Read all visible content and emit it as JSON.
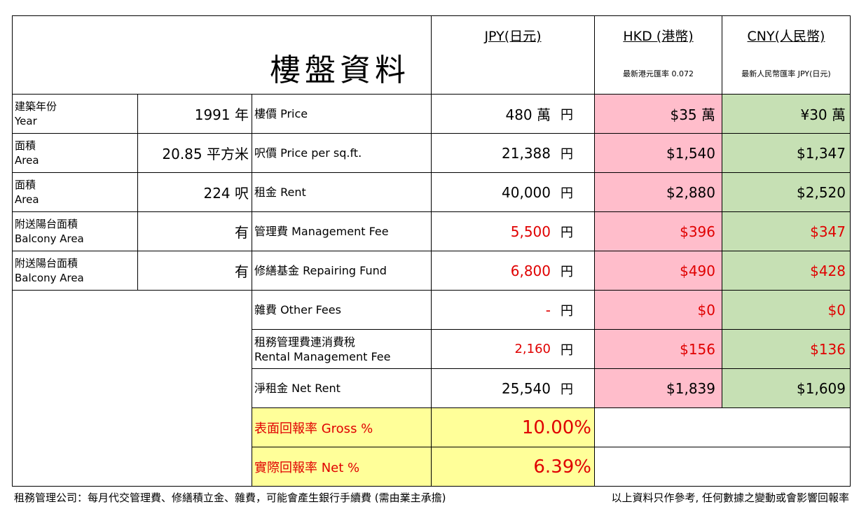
{
  "title": "樓盤資料",
  "currencies": [
    {
      "label": "JPY(日元)",
      "rate": ""
    },
    {
      "label": "HKD (港幣)",
      "rate": "最新港元匯率 0.072"
    },
    {
      "label": "CNY(人民幣)",
      "rate": "最新人民幣匯率 JPY(日元)"
    }
  ],
  "specs": [
    {
      "zh": "建築年份",
      "en": "Year",
      "value": "1991 年"
    },
    {
      "zh": "面積",
      "en": "Area",
      "value": "20.85 平方米"
    },
    {
      "zh": "面積",
      "en": "Area",
      "value": "224 呎"
    },
    {
      "zh": "附送陽台面積",
      "en": "Balcony Area",
      "value": "有"
    },
    {
      "zh": "附送陽台面積",
      "en": "Balcony Area",
      "value": "有"
    }
  ],
  "items": [
    {
      "label": "樓價 Price",
      "label2": "",
      "jpy": "480 萬",
      "hkd": "$35 萬",
      "cny": "¥30 萬",
      "red": false
    },
    {
      "label": "呎價 Price per sq.ft.",
      "label2": "",
      "jpy": "21,388",
      "hkd": "$1,540",
      "cny": "$1,347",
      "red": false
    },
    {
      "label": "租金 Rent",
      "label2": "",
      "jpy": "40,000",
      "hkd": "$2,880",
      "cny": "$2,520",
      "red": false
    },
    {
      "label": "管理費 Management Fee",
      "label2": "",
      "jpy": "5,500",
      "hkd": "$396",
      "cny": "$347",
      "red": true
    },
    {
      "label": "修繕基金 Repairing Fund",
      "label2": "",
      "jpy": "6,800",
      "hkd": "$490",
      "cny": "$428",
      "red": true
    },
    {
      "label": "雜費 Other Fees",
      "label2": "",
      "jpy": "-",
      "hkd": "$0",
      "cny": "$0",
      "red": true
    },
    {
      "label": "租務管理費連消費稅",
      "label2": "Rental Management Fee",
      "jpy": "2,160",
      "hkd": "$156",
      "cny": "$136",
      "red": true
    },
    {
      "label": "淨租金 Net Rent",
      "label2": "",
      "jpy": "25,540",
      "hkd": "$1,839",
      "cny": "$1,609",
      "red": false
    }
  ],
  "yen_symbol": "円",
  "yields": [
    {
      "label": "表面回報率 Gross %",
      "value": "10.00%"
    },
    {
      "label": "實際回報率 Net %",
      "value": "6.39%"
    }
  ],
  "footer": {
    "left": "租務管理公司：每月代交管理費、修繕積立金、雜費，可能會產生銀行手續費 (需由業主承擔)",
    "right": "以上資料只作參考, 任何數據之變動或會影響回報率"
  }
}
